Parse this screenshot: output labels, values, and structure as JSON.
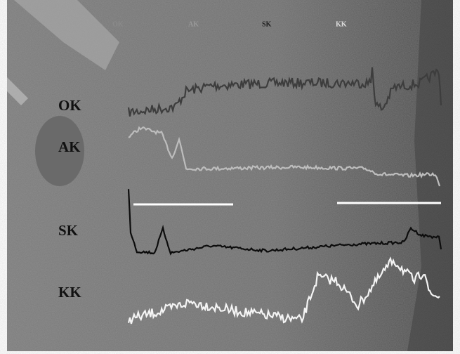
{
  "labels": {
    "left": [
      "OK",
      "AK",
      "SK",
      "KK"
    ],
    "top": [
      "OK",
      "AK",
      "SK",
      "KK"
    ]
  }
}
